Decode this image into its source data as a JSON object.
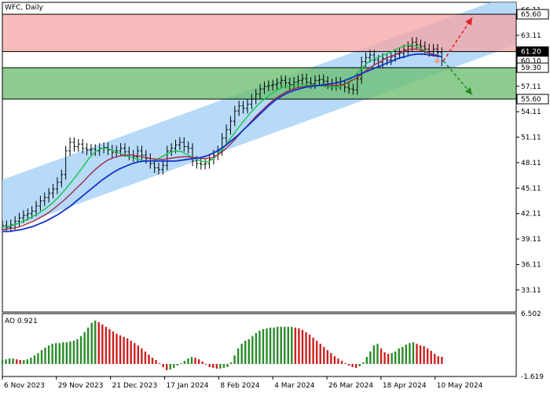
{
  "header": {
    "symbol_label": "WFC, Daily"
  },
  "colors": {
    "channel": "#a9d3f7",
    "resistance_zone": "#f6a3a3",
    "support_zone": "#6fbf73",
    "ma_fast": "#17c448",
    "ma_mid": "#a32a45",
    "ma_slow": "#1133cc",
    "arrow_up": "#e02020",
    "arrow_down": "#1f8a1f",
    "ao_up": "#2a8a2a",
    "ao_down": "#cc2020"
  },
  "chart_data": [
    {
      "type": "candlestick",
      "title": "WFC, Daily",
      "ylim": [
        30.5,
        67.0
      ],
      "y_ticks": [
        "66.11",
        "63.11",
        "60.10",
        "57.11",
        "54.11",
        "51.11",
        "48.11",
        "45.11",
        "42.11",
        "39.11",
        "36.11",
        "33.11"
      ],
      "x_ticks": [
        "6 Nov 2023",
        "29 Nov 2023",
        "21 Dec 2023",
        "17 Jan 2024",
        "8 Feb 2024",
        "4 Mar 2024",
        "26 Mar 2024",
        "18 Apr 2024",
        "10 May 2024"
      ],
      "x_tick_index": [
        0,
        16,
        32,
        48,
        64,
        80,
        96,
        112,
        128
      ],
      "price_labels": [
        {
          "text": "65.60",
          "value": 65.6,
          "style": "outline"
        },
        {
          "text": "61.20",
          "value": 61.2,
          "style": "filled"
        },
        {
          "text": "60.10",
          "value": 60.1,
          "style": "outline"
        },
        {
          "text": "59.30",
          "value": 59.3,
          "style": "outline"
        },
        {
          "text": "55.60",
          "value": 55.6,
          "style": "outline"
        }
      ],
      "zones": [
        {
          "name": "resistance",
          "from": 61.2,
          "to": 65.6
        },
        {
          "name": "support",
          "from": 55.6,
          "to": 59.3
        }
      ],
      "channel": {
        "start": {
          "index": 0,
          "upper": 46.1,
          "lower": 40.0
        },
        "end": {
          "index": 152,
          "upper": 68.1,
          "lower": 62.0
        }
      },
      "closes": [
        40.7,
        40.5,
        40.8,
        41.2,
        41.6,
        41.9,
        42.1,
        42.4,
        43.0,
        43.6,
        44.0,
        44.5,
        45.0,
        45.8,
        46.7,
        49.5,
        50.5,
        50.0,
        50.3,
        49.8,
        49.6,
        49.7,
        49.5,
        49.8,
        49.9,
        49.6,
        49.3,
        49.5,
        49.8,
        49.4,
        49.0,
        48.8,
        49.5,
        49.0,
        48.6,
        48.0,
        47.5,
        47.3,
        47.8,
        49.5,
        49.8,
        50.2,
        50.5,
        50.0,
        49.8,
        48.3,
        48.0,
        47.9,
        48.0,
        48.5,
        49.0,
        49.5,
        51.0,
        52.0,
        53.0,
        54.2,
        54.8,
        54.5,
        55.0,
        55.6,
        56.2,
        56.8,
        57.1,
        57.2,
        57.3,
        57.5,
        57.8,
        57.5,
        57.3,
        57.6,
        57.8,
        58.0,
        57.6,
        57.4,
        57.8,
        57.9,
        57.7,
        57.4,
        57.2,
        57.6,
        57.3,
        57.0,
        56.8,
        56.7,
        58.0,
        60.0,
        60.5,
        60.8,
        60.2,
        59.9,
        60.4,
        60.2,
        60.6,
        60.9,
        61.0,
        61.4,
        61.8,
        62.3,
        62.0,
        61.8,
        61.5,
        61.2,
        61.5,
        61.1,
        60.1
      ],
      "series": [
        {
          "name": "MA fast",
          "values": [
            40.5,
            40.6,
            40.8,
            41.1,
            41.4,
            41.8,
            42.2,
            42.7,
            43.3,
            44.0,
            44.8,
            45.7,
            46.6,
            47.6,
            48.6,
            49.4,
            49.8,
            49.8,
            49.5,
            49.2,
            48.9,
            48.7,
            48.5,
            48.3,
            48.3,
            48.5,
            48.9,
            49.3,
            49.5,
            49.4,
            49.0,
            48.6,
            48.3,
            48.2,
            48.5,
            49.2,
            50.1,
            51.1,
            52.1,
            53.0,
            53.9,
            54.7,
            55.4,
            56.0,
            56.5,
            56.9,
            57.1,
            57.2,
            57.3,
            57.3,
            57.3,
            57.2,
            57.1,
            57.0,
            57.0,
            57.2,
            57.7,
            58.4,
            59.2,
            59.9,
            60.3,
            60.6,
            60.9,
            61.2,
            61.6,
            61.9,
            62.0,
            61.8,
            61.4,
            61.0,
            60.7,
            60.6
          ]
        },
        {
          "name": "MA mid",
          "values": [
            40.2,
            40.3,
            40.4,
            40.6,
            40.9,
            41.2,
            41.6,
            42.0,
            42.5,
            43.1,
            43.7,
            44.4,
            45.1,
            45.8,
            46.6,
            47.3,
            47.9,
            48.4,
            48.7,
            48.9,
            49.0,
            49.0,
            48.9,
            48.7,
            48.6,
            48.5,
            48.5,
            48.6,
            48.7,
            48.8,
            48.8,
            48.7,
            48.6,
            48.6,
            48.7,
            49.1,
            49.7,
            50.4,
            51.2,
            52.0,
            52.8,
            53.6,
            54.3,
            55.0,
            55.6,
            56.1,
            56.5,
            56.8,
            57.0,
            57.1,
            57.2,
            57.2,
            57.2,
            57.2,
            57.2,
            57.3,
            57.6,
            58.0,
            58.5,
            59.1,
            59.6,
            60.0,
            60.4,
            60.7,
            61.0,
            61.3,
            61.5,
            61.5,
            61.3,
            61.0,
            60.8,
            60.6
          ]
        },
        {
          "name": "MA slow",
          "values": [
            40.0,
            40.0,
            40.1,
            40.2,
            40.4,
            40.6,
            40.9,
            41.2,
            41.6,
            42.0,
            42.5,
            43.0,
            43.6,
            44.2,
            44.8,
            45.4,
            46.0,
            46.5,
            47.0,
            47.4,
            47.7,
            48.0,
            48.2,
            48.3,
            48.3,
            48.3,
            48.3,
            48.3,
            48.3,
            48.4,
            48.5,
            48.6,
            48.7,
            48.9,
            49.2,
            49.6,
            50.1,
            50.7,
            51.3,
            52.0,
            52.7,
            53.4,
            54.1,
            54.8,
            55.4,
            55.9,
            56.3,
            56.6,
            56.8,
            57.0,
            57.1,
            57.2,
            57.3,
            57.4,
            57.5,
            57.7,
            58.0,
            58.3,
            58.6,
            58.9,
            59.2,
            59.5,
            59.8,
            60.1,
            60.4,
            60.6,
            60.8,
            60.9,
            60.9,
            60.8,
            60.7,
            60.6
          ]
        }
      ]
    },
    {
      "type": "bar",
      "title": "AO 0.921",
      "ylim": [
        -1.619,
        6.502
      ],
      "y_ticks": [
        "6.502",
        "-1.619"
      ],
      "values": [
        0.5,
        0.6,
        0.7,
        0.7,
        0.6,
        0.5,
        0.5,
        0.6,
        0.8,
        1.1,
        1.4,
        1.8,
        2.1,
        2.4,
        2.6,
        2.7,
        2.7,
        2.8,
        2.8,
        2.9,
        3.0,
        3.2,
        3.6,
        4.1,
        4.7,
        5.3,
        5.6,
        5.4,
        5.1,
        4.8,
        4.5,
        4.2,
        3.9,
        3.7,
        3.5,
        3.3,
        3.0,
        2.7,
        2.4,
        2.0,
        1.6,
        1.2,
        0.8,
        0.5,
        0.1,
        -0.4,
        -0.8,
        -0.7,
        -0.5,
        -0.2,
        0.1,
        0.4,
        0.7,
        0.9,
        0.8,
        0.6,
        0.3,
        -0.1,
        -0.4,
        -0.5,
        -0.6,
        -0.6,
        -0.5,
        -0.4,
        0.2,
        1.1,
        2.0,
        2.6,
        3.0,
        3.2,
        3.6,
        4.0,
        4.3,
        4.5,
        4.6,
        4.7,
        4.7,
        4.8,
        4.8,
        4.8,
        4.8,
        4.8,
        4.7,
        4.6,
        4.4,
        4.1,
        3.8,
        3.4,
        3.0,
        2.6,
        2.2,
        1.8,
        1.4,
        1.0,
        0.7,
        0.4,
        0.1,
        -0.2,
        -0.4,
        -0.5,
        -0.3,
        0.2,
        0.9,
        1.6,
        2.4,
        2.6,
        2.0,
        1.5,
        1.3,
        1.4,
        1.6,
        2.0,
        2.2,
        2.5,
        2.7,
        2.8,
        2.6,
        2.4,
        2.3,
        2.0,
        1.7,
        1.3,
        1.0,
        0.921
      ]
    }
  ]
}
